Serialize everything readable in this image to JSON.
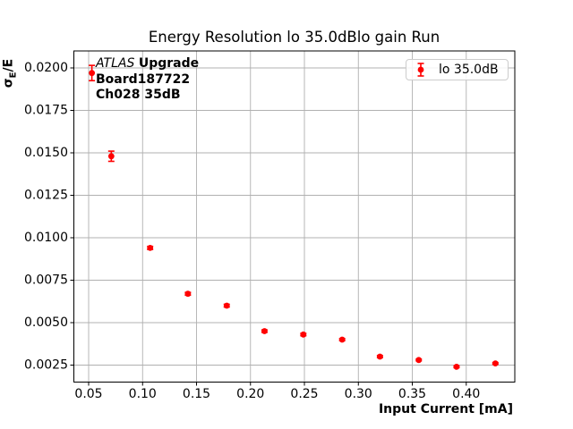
{
  "figure": {
    "ylabel": {
      "sigma": "σ",
      "sub": "E",
      "rest": "/E"
    },
    "annotation": {
      "line1_italic": "ATLAS",
      "line1_bold": "Upgrade",
      "line2": "Board187722",
      "line3": "Ch028 35dB"
    }
  },
  "chart_data": {
    "type": "scatter",
    "title": "Energy Resolution lo 35.0dBlo gain Run",
    "xlabel": "Input Current [mA]",
    "ylabel": "σE/E",
    "xlim": [
      0.0363,
      0.445
    ],
    "ylim": [
      0.0015,
      0.021
    ],
    "x_ticks": [
      0.05,
      0.1,
      0.15,
      0.2,
      0.25,
      0.3,
      0.35,
      0.4
    ],
    "x_tick_labels": [
      "0.05",
      "0.10",
      "0.15",
      "0.20",
      "0.25",
      "0.30",
      "0.35",
      "0.40"
    ],
    "y_ticks": [
      0.0025,
      0.005,
      0.0075,
      0.01,
      0.0125,
      0.015,
      0.0175,
      0.02
    ],
    "y_tick_labels": [
      "0.0025",
      "0.0050",
      "0.0075",
      "0.0100",
      "0.0125",
      "0.0150",
      "0.0175",
      "0.0200"
    ],
    "grid": true,
    "legend_position": "upper right",
    "series": [
      {
        "name": "lo 35.0dB",
        "color": "#ff0000",
        "marker": "circle-with-errorbar",
        "x": [
          0.053,
          0.071,
          0.107,
          0.142,
          0.178,
          0.213,
          0.249,
          0.285,
          0.32,
          0.356,
          0.391,
          0.427
        ],
        "y": [
          0.0197,
          0.0148,
          0.0094,
          0.0067,
          0.006,
          0.0045,
          0.0043,
          0.004,
          0.003,
          0.0028,
          0.0024,
          0.0026
        ],
        "yerr": [
          0.00045,
          0.0003,
          9e-05,
          8e-05,
          8e-05,
          7e-05,
          7e-05,
          6e-05,
          6e-05,
          5e-05,
          5e-05,
          5e-05
        ]
      }
    ],
    "colors": {
      "marker": "#ff0000",
      "grid": "#b0b0b0",
      "axis": "#000000",
      "legend_border": "#cccccc",
      "text": "#000000"
    }
  }
}
